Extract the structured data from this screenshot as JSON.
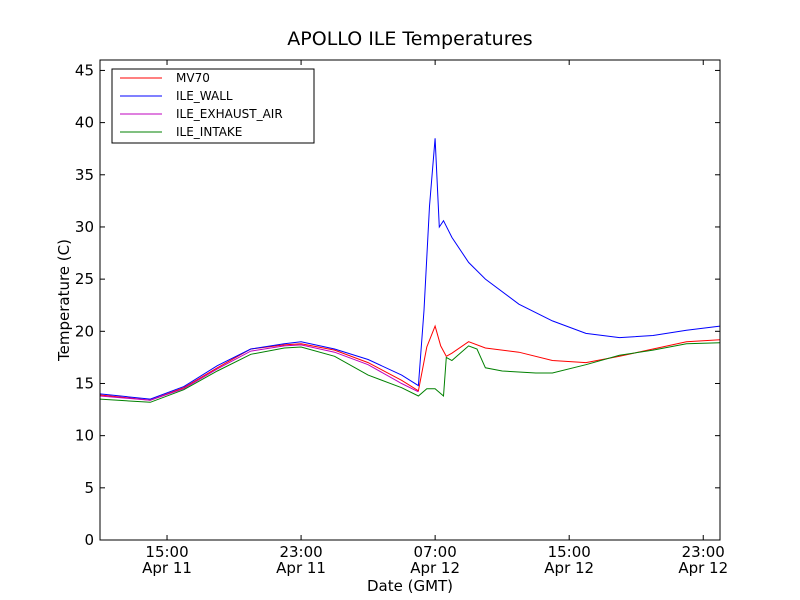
{
  "chart_data": {
    "type": "line",
    "title": "APOLLO ILE Temperatures",
    "xlabel": "Date (GMT)",
    "ylabel": "Temperature (C)",
    "xlim": [
      "2011-04-11 11:00",
      "2011-04-13 00:00"
    ],
    "ylim": [
      0,
      46
    ],
    "yticks": [
      0,
      5,
      10,
      15,
      20,
      25,
      30,
      35,
      40,
      45
    ],
    "xticks": [
      {
        "time": "2011-04-11 15:00",
        "label1": "15:00",
        "label2": "Apr 11"
      },
      {
        "time": "2011-04-11 23:00",
        "label1": "23:00",
        "label2": "Apr 11"
      },
      {
        "time": "2011-04-12 07:00",
        "label1": "07:00",
        "label2": "Apr 12"
      },
      {
        "time": "2011-04-12 15:00",
        "label1": "15:00",
        "label2": "Apr 12"
      },
      {
        "time": "2011-04-12 23:00",
        "label1": "23:00",
        "label2": "Apr 12"
      }
    ],
    "grid": false,
    "legend_position": "top-left",
    "series": [
      {
        "name": "MV70",
        "color": "#ff0000",
        "x": [
          "2011-04-11 11:00",
          "2011-04-11 14:00",
          "2011-04-11 16:00",
          "2011-04-11 18:00",
          "2011-04-11 20:00",
          "2011-04-11 22:00",
          "2011-04-11 23:00",
          "2011-04-12 01:00",
          "2011-04-12 03:00",
          "2011-04-12 05:00",
          "2011-04-12 05:30",
          "2011-04-12 06:00",
          "2011-04-12 06:30",
          "2011-04-12 07:00",
          "2011-04-12 07:20",
          "2011-04-12 07:40",
          "2011-04-12 08:00",
          "2011-04-12 09:00",
          "2011-04-12 10:00",
          "2011-04-12 12:00",
          "2011-04-12 14:00",
          "2011-04-12 16:00",
          "2011-04-12 18:00",
          "2011-04-12 20:00",
          "2011-04-12 22:00",
          "2011-04-13 00:00"
        ],
        "y": [
          13.9,
          13.4,
          14.6,
          16.5,
          18.3,
          18.7,
          18.8,
          18.2,
          17.0,
          15.3,
          14.8,
          14.3,
          18.5,
          20.5,
          18.6,
          17.6,
          17.9,
          19.0,
          18.4,
          18.0,
          17.2,
          17.0,
          17.6,
          18.3,
          19.0,
          19.2
        ]
      },
      {
        "name": "ILE_WALL",
        "color": "#0000ff",
        "x": [
          "2011-04-11 11:00",
          "2011-04-11 14:00",
          "2011-04-11 16:00",
          "2011-04-11 18:00",
          "2011-04-11 20:00",
          "2011-04-11 22:00",
          "2011-04-11 23:00",
          "2011-04-12 01:00",
          "2011-04-12 03:00",
          "2011-04-12 05:00",
          "2011-04-12 06:00",
          "2011-04-12 06:20",
          "2011-04-12 06:40",
          "2011-04-12 07:00",
          "2011-04-12 07:15",
          "2011-04-12 07:30",
          "2011-04-12 08:00",
          "2011-04-12 09:00",
          "2011-04-12 10:00",
          "2011-04-12 12:00",
          "2011-04-12 14:00",
          "2011-04-12 16:00",
          "2011-04-12 18:00",
          "2011-04-12 20:00",
          "2011-04-12 22:00",
          "2011-04-13 00:00"
        ],
        "y": [
          14.0,
          13.5,
          14.7,
          16.7,
          18.3,
          18.8,
          19.0,
          18.3,
          17.3,
          15.8,
          14.8,
          22.0,
          32.0,
          38.5,
          30.0,
          30.6,
          29.0,
          26.6,
          25.0,
          22.6,
          21.0,
          19.8,
          19.4,
          19.6,
          20.1,
          20.5
        ]
      },
      {
        "name": "ILE_EXHAUST_AIR",
        "color": "#bf00bf",
        "x": [
          "2011-04-11 11:00",
          "2011-04-11 14:00",
          "2011-04-11 16:00",
          "2011-04-11 18:00",
          "2011-04-11 20:00",
          "2011-04-11 22:00",
          "2011-04-11 23:00",
          "2011-04-12 01:00",
          "2011-04-12 03:00",
          "2011-04-12 05:00",
          "2011-04-12 06:00"
        ],
        "y": [
          13.8,
          13.4,
          14.5,
          16.4,
          18.1,
          18.6,
          18.7,
          18.0,
          16.8,
          15.0,
          14.2
        ]
      },
      {
        "name": "ILE_INTAKE",
        "color": "#008000",
        "x": [
          "2011-04-11 11:00",
          "2011-04-11 14:00",
          "2011-04-11 16:00",
          "2011-04-11 18:00",
          "2011-04-11 20:00",
          "2011-04-11 22:00",
          "2011-04-11 23:00",
          "2011-04-12 01:00",
          "2011-04-12 03:00",
          "2011-04-12 05:00",
          "2011-04-12 06:00",
          "2011-04-12 06:30",
          "2011-04-12 07:00",
          "2011-04-12 07:30",
          "2011-04-12 07:40",
          "2011-04-12 08:00",
          "2011-04-12 09:00",
          "2011-04-12 09:30",
          "2011-04-12 10:00",
          "2011-04-12 11:00",
          "2011-04-12 13:00",
          "2011-04-12 14:00",
          "2011-04-12 16:00",
          "2011-04-12 18:00",
          "2011-04-12 20:00",
          "2011-04-12 22:00",
          "2011-04-13 00:00"
        ],
        "y": [
          13.5,
          13.2,
          14.4,
          16.2,
          17.8,
          18.4,
          18.5,
          17.6,
          15.8,
          14.6,
          13.8,
          14.5,
          14.5,
          13.8,
          17.5,
          17.2,
          18.6,
          18.3,
          16.5,
          16.2,
          16.0,
          16.0,
          16.8,
          17.7,
          18.2,
          18.8,
          18.9
        ]
      }
    ]
  }
}
